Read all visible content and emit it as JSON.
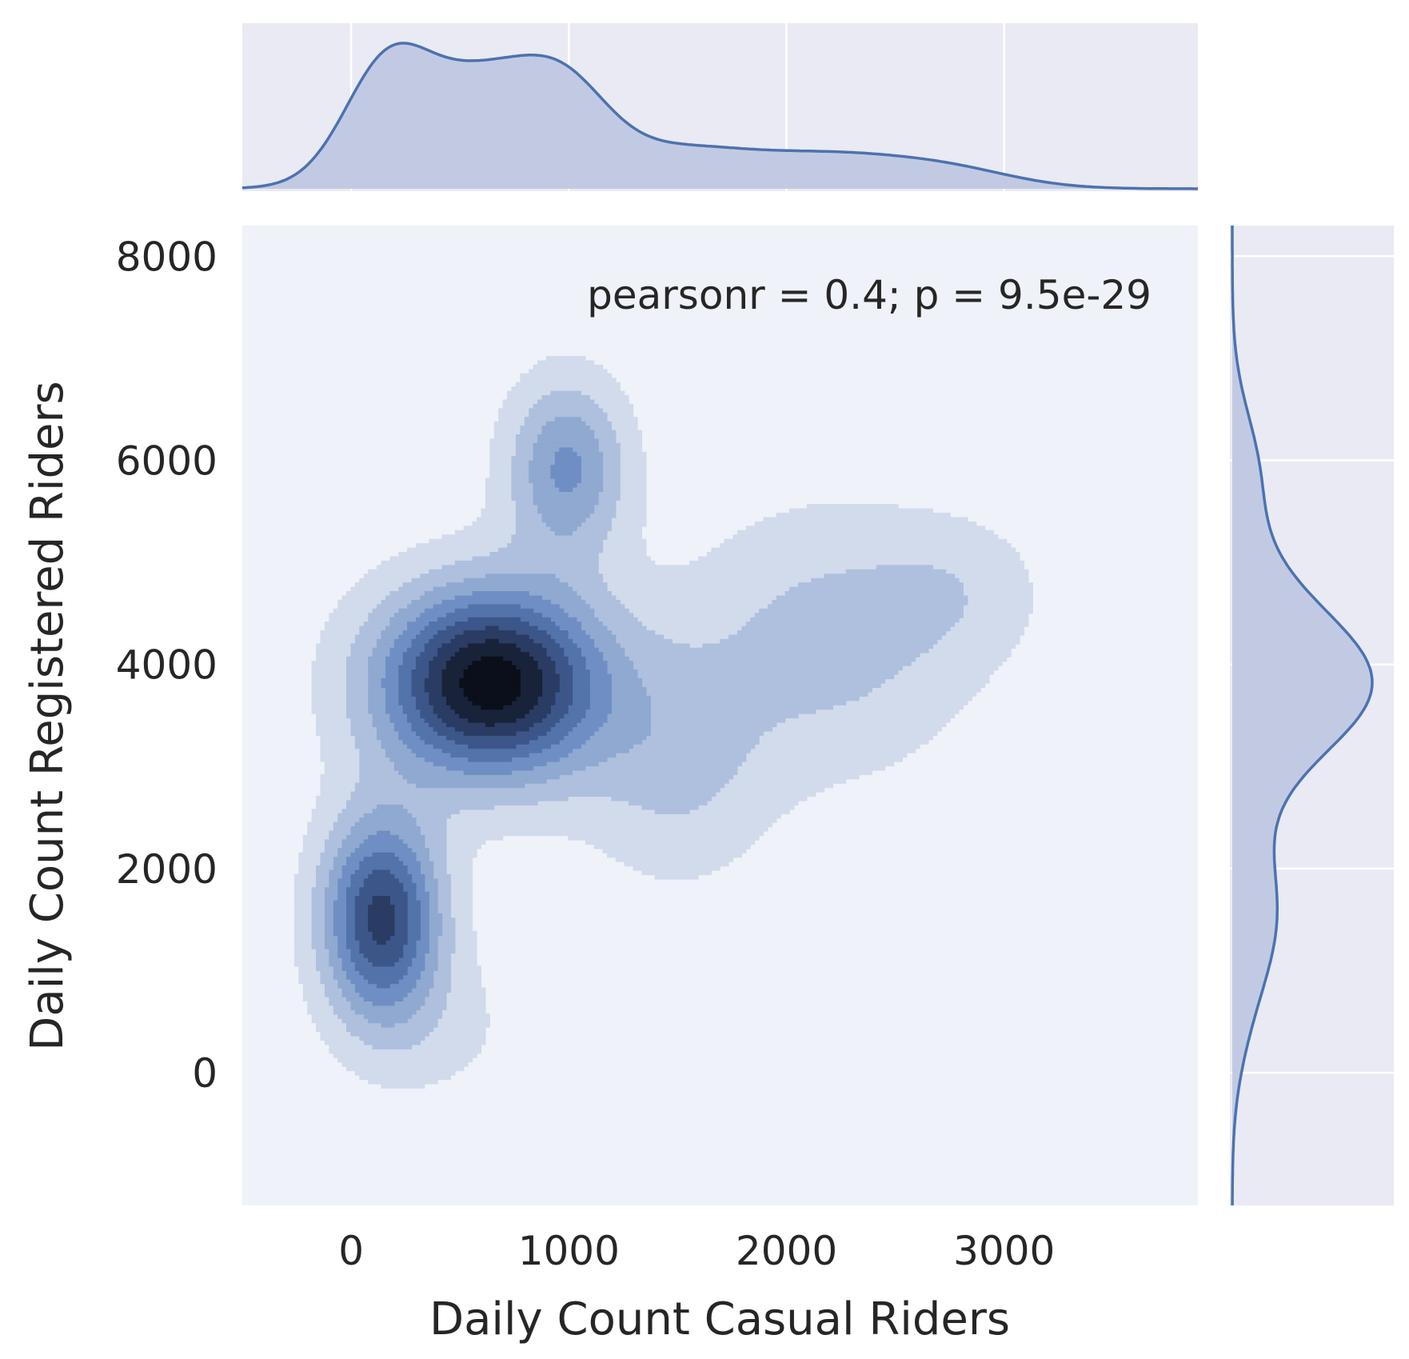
{
  "chart_data": {
    "type": "kde-jointplot",
    "xlabel": "Daily Count Casual Riders",
    "ylabel": "Daily Count Registered Riders",
    "annotation": "pearsonr = 0.4; p = 9.5e-29",
    "xlim": [
      -500,
      3890
    ],
    "ylim": [
      -1300,
      8300
    ],
    "x_ticks": [
      0,
      1000,
      2000,
      3000
    ],
    "y_ticks": [
      0,
      2000,
      4000,
      6000,
      8000
    ],
    "x_tick_labels": [
      "0",
      "1000",
      "2000",
      "3000"
    ],
    "y_tick_labels": [
      "0",
      "2000",
      "4000",
      "6000",
      "8000"
    ],
    "joint_background": "#eff2f8",
    "marginal_background": "#e9eaf3",
    "series_color": "#4c72b0",
    "fill_color": "#c2cae3",
    "contour_levels": [
      "#d1dbeb",
      "#afc0de",
      "#90a9d0",
      "#6f8fc4",
      "#5373ab",
      "#3c5689",
      "#2a3c63",
      "#182238",
      "#0b0f1a"
    ],
    "components": [
      {
        "cx": 150,
        "cy": 1500,
        "sx": 190,
        "sy": 700,
        "w": 0.27
      },
      {
        "cx": 650,
        "cy": 3800,
        "sx": 360,
        "sy": 650,
        "w": 0.36
      },
      {
        "cx": 1000,
        "cy": 5900,
        "sx": 190,
        "sy": 600,
        "w": 0.15
      },
      {
        "cx": 1500,
        "cy": 3000,
        "sx": 300,
        "sy": 800,
        "w": 0.07
      },
      {
        "cx": 2200,
        "cy": 4200,
        "sx": 450,
        "sy": 900,
        "w": 0.08
      },
      {
        "cx": 2800,
        "cy": 4700,
        "sx": 280,
        "sy": 500,
        "w": 0.04
      },
      {
        "cx": 450,
        "cy": 400,
        "sx": 280,
        "sy": 550,
        "w": 0.03
      }
    ]
  }
}
